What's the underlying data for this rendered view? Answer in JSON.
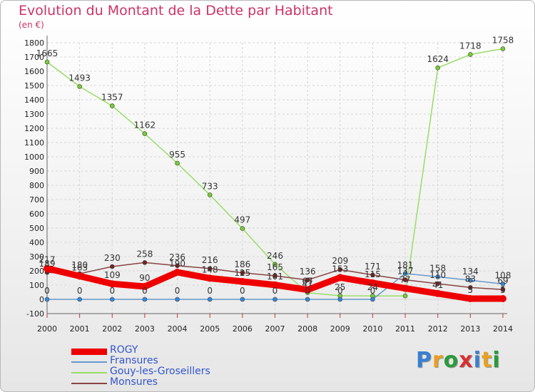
{
  "title": "Evolution du Montant de la Dette par Habitant",
  "subtitle": "(en €)",
  "logo": {
    "letters": [
      {
        "ch": "P",
        "color": "#3a7fd0"
      },
      {
        "ch": "r",
        "color": "#e8a020"
      },
      {
        "ch": "o",
        "color": "#2a9a3a"
      },
      {
        "ch": "x",
        "color": "#d83030"
      },
      {
        "ch": "i",
        "color": "#3a7fd0"
      },
      {
        "ch": "t",
        "color": "#e8a020"
      },
      {
        "ch": "i",
        "color": "#2a9a3a"
      }
    ]
  },
  "chart_data": {
    "type": "line",
    "x": [
      "2000",
      "2001",
      "2002",
      "2003",
      "2004",
      "2005",
      "2006",
      "2007",
      "2008",
      "2009",
      "2010",
      "2011",
      "2012",
      "2013",
      "2014"
    ],
    "yticks": [
      "-100",
      "0",
      "100",
      "200",
      "300",
      "400",
      "500",
      "600",
      "700",
      "800",
      "900",
      "1000",
      "1100",
      "1200",
      "1300",
      "1400",
      "1500",
      "1600",
      "1700",
      "1800"
    ],
    "ylim": [
      -100,
      1800
    ],
    "grid": true,
    "legend_position": "bottom-left",
    "series": [
      {
        "name": "ROGY",
        "color": "#ee0000",
        "marker": "#ee0000",
        "values": [
          217,
          163,
          109,
          90,
          190,
          148,
          125,
          101,
          67,
          153,
          115,
          77,
          41,
          5,
          5
        ],
        "labels": [
          "217",
          "163",
          "109",
          "90",
          "190",
          "148",
          "125",
          "101",
          "67",
          "153",
          "115",
          "77",
          "41",
          "5",
          "5"
        ]
      },
      {
        "name": "Fransures",
        "color": "#6699cc",
        "marker": "#3388dd",
        "values": [
          0,
          0,
          0,
          0,
          0,
          0,
          0,
          0,
          0,
          0,
          0,
          181,
          158,
          134,
          108
        ],
        "labels": [
          "0",
          "0",
          "0",
          "0",
          "0",
          "0",
          "0",
          "0",
          "0",
          "0",
          "0",
          "181",
          "158",
          "134",
          "108"
        ]
      },
      {
        "name": "Gouy-les-Groseillers",
        "color": "#99dd66",
        "marker": "#77cc33",
        "values": [
          1665,
          1493,
          1357,
          1162,
          955,
          733,
          497,
          246,
          47,
          25,
          24,
          24,
          1624,
          1718,
          1758
        ],
        "labels": [
          "1665",
          "1493",
          "1357",
          "1162",
          "955",
          "733",
          "497",
          "246",
          "47",
          "25",
          "24",
          "",
          "1624",
          "1718",
          "1758"
        ]
      },
      {
        "name": "Monsures",
        "color": "#884444",
        "marker": "#772222",
        "values": [
          189,
          180,
          230,
          258,
          236,
          216,
          186,
          165,
          136,
          209,
          171,
          137,
          110,
          83,
          69
        ],
        "labels": [
          "189",
          "180",
          "230",
          "258",
          "236",
          "216",
          "186",
          "165",
          "136",
          "209",
          "171",
          "137",
          "110",
          "83",
          "69"
        ]
      }
    ]
  }
}
